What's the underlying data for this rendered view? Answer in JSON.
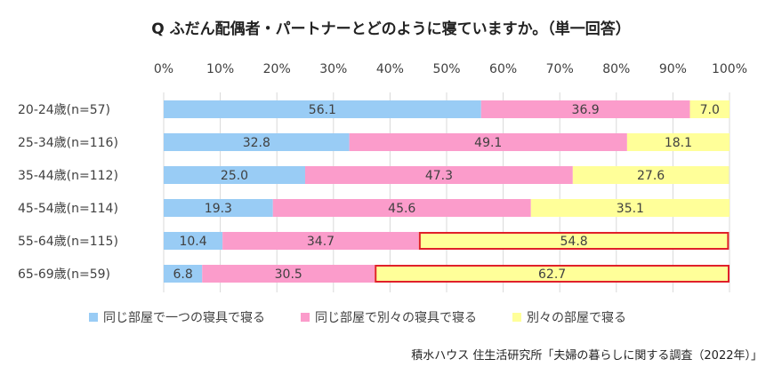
{
  "chart_data": {
    "type": "bar",
    "orientation": "horizontal",
    "stacked": true,
    "title": "Q ふだん配偶者・パートナーとどのように寝ていますか。（単一回答）",
    "categories": [
      "20-24歳(n=57)",
      "25-34歳(n=116)",
      "35-44歳(n=112)",
      "45-54歳(n=114)",
      "55-64歳(n=115)",
      "65-69歳(n=59)"
    ],
    "series": [
      {
        "name": "同じ部屋で一つの寝具で寝る",
        "values": [
          56.1,
          32.8,
          25.0,
          19.3,
          10.4,
          6.8
        ],
        "labels": [
          "56.1",
          "32.8",
          "25.0",
          "19.3",
          "10.4",
          "6.8"
        ],
        "color": "#99ccf5"
      },
      {
        "name": "同じ部屋で別々の寝具で寝る",
        "values": [
          36.9,
          49.1,
          47.3,
          45.6,
          34.7,
          30.5
        ],
        "labels": [
          "36.9",
          "49.1",
          "47.3",
          "45.6",
          "34.7",
          "30.5"
        ],
        "color": "#fb9ccb"
      },
      {
        "name": "別々の部屋で寝る",
        "values": [
          7.0,
          18.1,
          27.6,
          35.1,
          54.8,
          62.7
        ],
        "labels": [
          "7.0",
          "18.1",
          "27.6",
          "35.1",
          "54.8",
          "62.7"
        ],
        "color": "#ffff99"
      }
    ],
    "xlim": [
      0,
      100
    ],
    "x_ticks": [
      "0%",
      "10%",
      "20%",
      "30%",
      "40%",
      "50%",
      "60%",
      "70%",
      "80%",
      "90%",
      "100%"
    ],
    "x_tick_values": [
      0,
      10,
      20,
      30,
      40,
      50,
      60,
      70,
      80,
      90,
      100
    ],
    "grid": true,
    "legend_position": "bottom",
    "highlighted": [
      {
        "category_index": 4,
        "series_index": 2
      },
      {
        "category_index": 5,
        "series_index": 2
      }
    ],
    "highlight_color": "#e0202a",
    "grid_color": "#d9d9d9",
    "label_color": "#404040"
  },
  "source": "積水ハウス 住生活研究所「夫婦の暮らしに関する調査（2022年）」"
}
